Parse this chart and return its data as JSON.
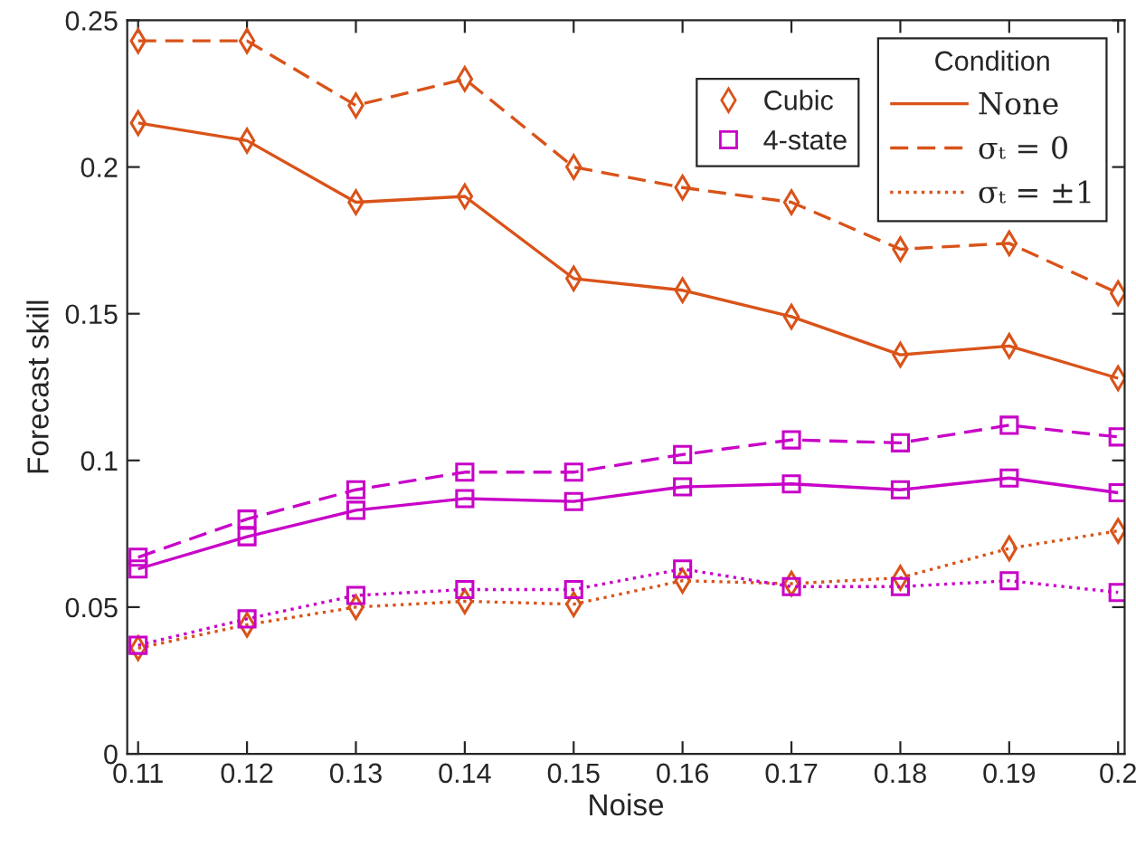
{
  "chart_data": {
    "type": "line",
    "xlabel": "Noise",
    "ylabel": "Forecast skill",
    "legend_title": "Condition",
    "x": [
      0.11,
      0.12,
      0.13,
      0.14,
      0.15,
      0.16,
      0.17,
      0.18,
      0.19,
      0.2
    ],
    "xlim": [
      0.109,
      0.2006
    ],
    "ylim": [
      0,
      0.25
    ],
    "xticks": [
      {
        "value": 0.11,
        "label": "0.11"
      },
      {
        "value": 0.12,
        "label": "0.12"
      },
      {
        "value": 0.13,
        "label": "0.13"
      },
      {
        "value": 0.14,
        "label": "0.14"
      },
      {
        "value": 0.15,
        "label": "0.15"
      },
      {
        "value": 0.16,
        "label": "0.16"
      },
      {
        "value": 0.17,
        "label": "0.17"
      },
      {
        "value": 0.18,
        "label": "0.18"
      },
      {
        "value": 0.19,
        "label": "0.19"
      },
      {
        "value": 0.2,
        "label": "0.2"
      }
    ],
    "yticks": [
      {
        "value": 0,
        "label": "0"
      },
      {
        "value": 0.05,
        "label": "0.05"
      },
      {
        "value": 0.1,
        "label": "0.1"
      },
      {
        "value": 0.15,
        "label": "0.15"
      },
      {
        "value": 0.2,
        "label": "0.2"
      },
      {
        "value": 0.25,
        "label": "0.25"
      }
    ],
    "grid": false,
    "legend": "top right",
    "annotations": [
      "None",
      "σₜ = 0",
      "σₜ = ±1"
    ],
    "series": [
      {
        "name": "Cubic",
        "color": "#d95319",
        "marker": "diamond",
        "line_style": "solid",
        "values": [
          0.215,
          0.209,
          0.188,
          0.19,
          0.162,
          0.158,
          0.149,
          0.136,
          0.139,
          0.128
        ]
      },
      {
        "color": "#d95319",
        "marker": "diamond",
        "line_style": "dashed",
        "values": [
          0.243,
          0.243,
          0.221,
          0.23,
          0.2,
          0.193,
          0.188,
          0.172,
          0.174,
          0.157
        ]
      },
      {
        "color": "#d95319",
        "marker": "diamond",
        "line_style": "dotted",
        "values": [
          0.036,
          0.044,
          0.05,
          0.052,
          0.051,
          0.059,
          0.058,
          0.06,
          0.07,
          0.076
        ]
      },
      {
        "name": "4-state",
        "color": "#c800c8",
        "marker": "square",
        "line_style": "solid",
        "values": [
          0.063,
          0.074,
          0.083,
          0.087,
          0.086,
          0.091,
          0.092,
          0.09,
          0.094,
          0.089
        ]
      },
      {
        "color": "#c800c8",
        "marker": "square",
        "line_style": "dashed",
        "values": [
          0.067,
          0.08,
          0.09,
          0.096,
          0.096,
          0.102,
          0.107,
          0.106,
          0.112,
          0.108
        ]
      },
      {
        "color": "#c800c8",
        "marker": "square",
        "line_style": "dotted",
        "values": [
          0.037,
          0.046,
          0.054,
          0.056,
          0.056,
          0.063,
          0.057,
          0.057,
          0.059,
          0.055
        ]
      }
    ]
  }
}
